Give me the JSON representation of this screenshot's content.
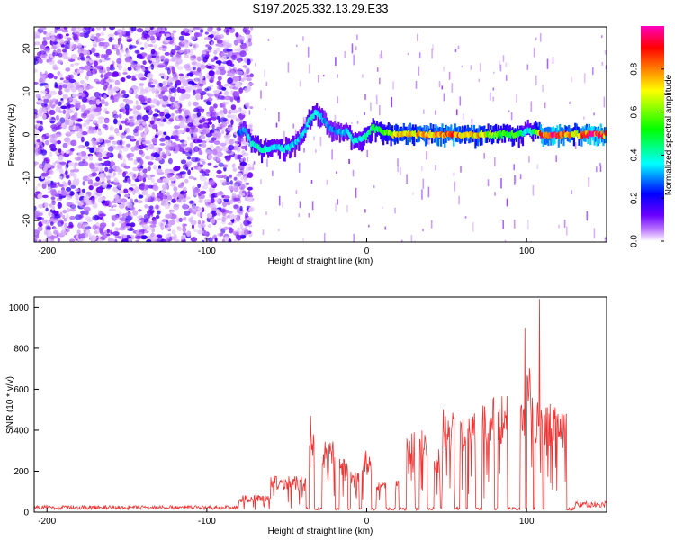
{
  "figure": {
    "title": "S197.2025.332.13.29.E33"
  },
  "chart_data": [
    {
      "type": "heatmap",
      "name": "spectrogram",
      "title": "S197.2025.332.13.29.E33",
      "xlabel": "Height of straight line (km)",
      "ylabel": "Frequency (Hz)",
      "xlim": [
        -208,
        150
      ],
      "ylim": [
        -25,
        25
      ],
      "xticks": [
        -200,
        -100,
        0,
        100
      ],
      "yticks": [
        -20,
        -10,
        0,
        10,
        20
      ],
      "colorbar": {
        "label": "Normalized spectral amplitude",
        "range": [
          0.0,
          1.0
        ],
        "ticks": [
          0.0,
          0.2,
          0.4,
          0.6,
          0.8
        ],
        "colormap": [
          "#ffffff",
          "#c080ff",
          "#6a00ff",
          "#0000ff",
          "#00ffff",
          "#00ff00",
          "#ffff00",
          "#ff8000",
          "#ff0000",
          "#ff00c0"
        ]
      },
      "noise_region_km": [
        -208,
        -72
      ],
      "signal_track": {
        "x": [
          -80,
          -76,
          -72,
          -68,
          -64,
          -60,
          -56,
          -52,
          -48,
          -44,
          -40,
          -36,
          -32,
          -28,
          -24,
          -20,
          -16,
          -12,
          -8,
          -4,
          0,
          4,
          8,
          12,
          16,
          20,
          30,
          40,
          50,
          60,
          70,
          80,
          90,
          96,
          100,
          104,
          110,
          120,
          130,
          140,
          150
        ],
        "freq_hz": [
          0.5,
          1.0,
          -2.0,
          -3.0,
          -3.5,
          -3.0,
          -2.5,
          -3.5,
          -3.0,
          -2.0,
          0.0,
          3.0,
          5.0,
          4.0,
          2.0,
          1.0,
          0.5,
          0.5,
          -1.5,
          -1.0,
          -0.5,
          1.5,
          1.0,
          0.5,
          0.0,
          0.0,
          0.0,
          0.0,
          0.0,
          0.0,
          0.0,
          0.0,
          0.0,
          0.0,
          1.0,
          0.5,
          0.0,
          0.0,
          0.0,
          0.0,
          0.0
        ],
        "amplitude": [
          0.3,
          0.35,
          0.4,
          0.45,
          0.45,
          0.4,
          0.4,
          0.4,
          0.45,
          0.35,
          0.35,
          0.4,
          0.45,
          0.35,
          0.3,
          0.3,
          0.35,
          0.35,
          0.4,
          0.4,
          0.45,
          0.5,
          0.55,
          0.6,
          0.75,
          0.8,
          0.8,
          0.85,
          0.9,
          0.85,
          0.85,
          0.6,
          0.55,
          0.6,
          0.35,
          0.5,
          0.95,
          0.95,
          0.75,
          1.0,
          0.9
        ]
      }
    },
    {
      "type": "line",
      "name": "snr",
      "xlabel": "Height of straight line (km)",
      "ylabel": "SNR (10 * v/v)",
      "xlim": [
        -208,
        150
      ],
      "ylim": [
        0,
        1050
      ],
      "xticks": [
        -200,
        -100,
        0,
        100
      ],
      "yticks": [
        0,
        200,
        400,
        600,
        800,
        1000
      ],
      "series": [
        {
          "name": "SNR",
          "color": "#ee3333",
          "segments": [
            {
              "x": [
                -208,
                -80
              ],
              "level": 25
            },
            {
              "x": [
                -80,
                -60
              ],
              "level": 80
            },
            {
              "x": [
                -60,
                -38
              ],
              "level": 170
            },
            {
              "x": [
                -36,
                -33
              ],
              "level": 450
            },
            {
              "x": [
                -28,
                -20
              ],
              "level": 330
            },
            {
              "x": [
                -17,
                -12
              ],
              "level": 250
            },
            {
              "x": [
                -10,
                -5
              ],
              "level": 190
            },
            {
              "x": [
                -3,
                3
              ],
              "level": 290
            },
            {
              "x": [
                6,
                12
              ],
              "level": 140
            },
            {
              "x": [
                18,
                20
              ],
              "level": 150
            },
            {
              "x": [
                25,
                30
              ],
              "level": 380
            },
            {
              "x": [
                33,
                38
              ],
              "level": 380
            },
            {
              "x": [
                42,
                46
              ],
              "level": 300
            },
            {
              "x": [
                47,
                55
              ],
              "level": 480
            },
            {
              "x": [
                58,
                62
              ],
              "level": 470
            },
            {
              "x": [
                63,
                68
              ],
              "level": 500
            },
            {
              "x": [
                72,
                80
              ],
              "level": 540
            },
            {
              "x": [
                82,
                88
              ],
              "level": 540
            },
            {
              "x": [
                96,
                99
              ],
              "level": 560
            },
            {
              "x": [
                100,
                104
              ],
              "level": 700
            },
            {
              "x": [
                105,
                110
              ],
              "level": 520
            },
            {
              "x": [
                111,
                125
              ],
              "level": 520
            },
            {
              "x": [
                130,
                150
              ],
              "level": 40
            }
          ],
          "peaks": [
            {
              "x": -35,
              "y": 470
            },
            {
              "x": 99,
              "y": 900
            },
            {
              "x": 108,
              "y": 1040
            }
          ]
        }
      ]
    }
  ]
}
